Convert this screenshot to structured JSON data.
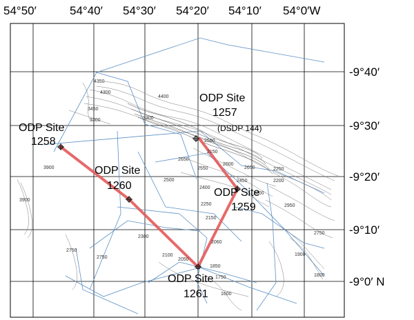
{
  "longitude_labels": [
    "54°50′",
    "54°40′",
    "54°30′",
    "54°20′",
    "54°10′",
    "54°0′W"
  ],
  "latitude_labels": [
    "-9°40′",
    "-9°30′",
    "-9°20′",
    "-9°10′",
    "-9°0′ N"
  ],
  "sites": [
    {
      "id": "1258",
      "name": "ODP Site",
      "number": "1258"
    },
    {
      "id": "1260",
      "name": "ODP Site",
      "number": "1260"
    },
    {
      "id": "1257",
      "name": "ODP Site",
      "number": "1257",
      "extra": "(DSDP 144)"
    },
    {
      "id": "1259",
      "name": "ODP Site",
      "number": "1259"
    },
    {
      "id": "1261",
      "name": "ODP Site",
      "number": "1261"
    }
  ],
  "contour_labels": [
    "4350",
    "4400",
    "3450",
    "3300",
    "4300",
    "3300",
    "2150",
    "2650",
    "2500",
    "2550",
    "2500",
    "2450",
    "2400",
    "2650",
    "2250",
    "2250",
    "2150",
    "2300",
    "2100",
    "2050",
    "2060",
    "1850",
    "1750",
    "1600",
    "2200",
    "2950",
    "2750",
    "1900",
    "1800",
    "3900",
    "3900",
    "2750",
    "2750",
    "2200",
    "2600"
  ],
  "colors": {
    "transect": "#e35a5a",
    "track": "#5b8fc4",
    "contour": "#7a7a7a"
  }
}
